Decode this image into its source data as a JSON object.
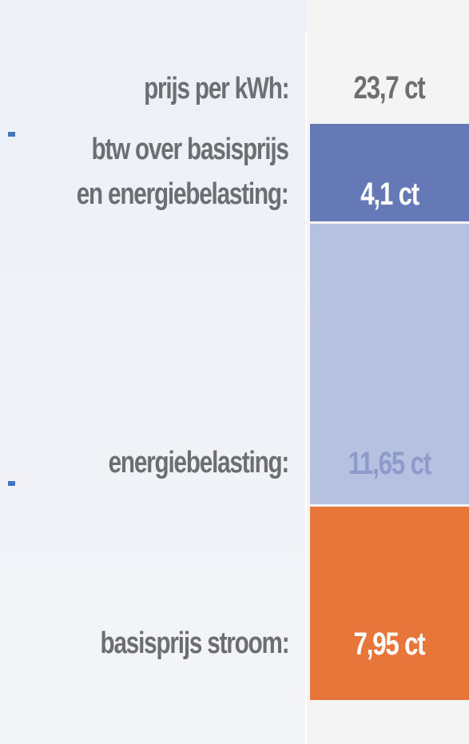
{
  "chart_data": {
    "type": "bar",
    "stacked": true,
    "unit": "ct",
    "total": {
      "label": "prijs per kWh:",
      "value_text": "23,7 ct",
      "value": 23.7
    },
    "segments": [
      {
        "label": "btw over basisprijs",
        "label_line2": "en energiebelasting:",
        "value": 4.1,
        "value_text": "4,1 ct",
        "color": "#6479b5",
        "text_color": "#ffffff"
      },
      {
        "label": "energiebelasting:",
        "value": 11.65,
        "value_text": "11,65 ct",
        "color": "#b6c1e2",
        "text_color": "#8e9ac9"
      },
      {
        "label": "basisprijs stroom:",
        "value": 7.95,
        "value_text": "7,95 ct",
        "color": "#e8763a",
        "text_color": "#ffffff"
      }
    ],
    "tick_color": "#3f78c0",
    "label_color": "#6d6e71",
    "total_text_color": "#6d6e71"
  }
}
